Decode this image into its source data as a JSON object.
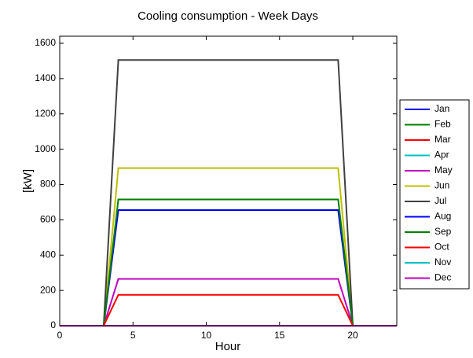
{
  "chart_data": {
    "type": "line",
    "title": "Cooling consumption - Week Days",
    "x_label": "Hour",
    "y_label": "[kW]",
    "x": [
      0,
      1,
      2,
      3,
      4,
      5,
      6,
      7,
      8,
      9,
      10,
      11,
      12,
      13,
      14,
      15,
      16,
      17,
      18,
      19,
      20,
      21,
      22,
      23
    ],
    "xlim": [
      0,
      23
    ],
    "xticks": [
      0,
      5,
      10,
      15,
      20
    ],
    "ylim": [
      0,
      1640
    ],
    "yticks": [
      0,
      200,
      400,
      600,
      800,
      1000,
      1200,
      1400,
      1600
    ],
    "series": [
      {
        "name": "Jan",
        "color": "#0000ff",
        "values": [
          0,
          0,
          0,
          0,
          0,
          0,
          0,
          0,
          0,
          0,
          0,
          0,
          0,
          0,
          0,
          0,
          0,
          0,
          0,
          0,
          0,
          0,
          0,
          0
        ]
      },
      {
        "name": "Feb",
        "color": "#008000",
        "values": [
          0,
          0,
          0,
          0,
          0,
          0,
          0,
          0,
          0,
          0,
          0,
          0,
          0,
          0,
          0,
          0,
          0,
          0,
          0,
          0,
          0,
          0,
          0,
          0
        ]
      },
      {
        "name": "Mar",
        "color": "#ff0000",
        "values": [
          0,
          0,
          0,
          0,
          0,
          0,
          0,
          0,
          0,
          0,
          0,
          0,
          0,
          0,
          0,
          0,
          0,
          0,
          0,
          0,
          0,
          0,
          0,
          0
        ]
      },
      {
        "name": "Apr",
        "color": "#00bfbf",
        "values": [
          0,
          0,
          0,
          0,
          0,
          0,
          0,
          0,
          0,
          0,
          0,
          0,
          0,
          0,
          0,
          0,
          0,
          0,
          0,
          0,
          0,
          0,
          0,
          0
        ]
      },
      {
        "name": "May",
        "color": "#bf00bf",
        "values": [
          0,
          0,
          0,
          0,
          265,
          265,
          265,
          265,
          265,
          265,
          265,
          265,
          265,
          265,
          265,
          265,
          265,
          265,
          265,
          265,
          0,
          0,
          0,
          0
        ]
      },
      {
        "name": "Jun",
        "color": "#bfbf00",
        "values": [
          0,
          0,
          0,
          0,
          893,
          893,
          893,
          893,
          893,
          893,
          893,
          893,
          893,
          893,
          893,
          893,
          893,
          893,
          893,
          893,
          0,
          0,
          0,
          0
        ]
      },
      {
        "name": "Jul",
        "color": "#404040",
        "values": [
          0,
          0,
          0,
          0,
          1505,
          1505,
          1505,
          1505,
          1505,
          1505,
          1505,
          1505,
          1505,
          1505,
          1505,
          1505,
          1505,
          1505,
          1505,
          1505,
          0,
          0,
          0,
          0
        ]
      },
      {
        "name": "Aug",
        "color": "#0000ff",
        "values": [
          0,
          0,
          0,
          0,
          655,
          655,
          655,
          655,
          655,
          655,
          655,
          655,
          655,
          655,
          655,
          655,
          655,
          655,
          655,
          655,
          0,
          0,
          0,
          0
        ]
      },
      {
        "name": "Sep",
        "color": "#008000",
        "values": [
          0,
          0,
          0,
          0,
          715,
          715,
          715,
          715,
          715,
          715,
          715,
          715,
          715,
          715,
          715,
          715,
          715,
          715,
          715,
          715,
          0,
          0,
          0,
          0
        ]
      },
      {
        "name": "Oct",
        "color": "#ff0000",
        "values": [
          0,
          0,
          0,
          0,
          175,
          175,
          175,
          175,
          175,
          175,
          175,
          175,
          175,
          175,
          175,
          175,
          175,
          175,
          175,
          175,
          0,
          0,
          0,
          0
        ]
      },
      {
        "name": "Nov",
        "color": "#00bfbf",
        "values": [
          0,
          0,
          0,
          0,
          0,
          0,
          0,
          0,
          0,
          0,
          0,
          0,
          0,
          0,
          0,
          0,
          0,
          0,
          0,
          0,
          0,
          0,
          0,
          0
        ]
      },
      {
        "name": "Dec",
        "color": "#bf00bf",
        "values": [
          0,
          0,
          0,
          0,
          0,
          0,
          0,
          0,
          0,
          0,
          0,
          0,
          0,
          0,
          0,
          0,
          0,
          0,
          0,
          0,
          0,
          0,
          0,
          0
        ]
      }
    ]
  }
}
